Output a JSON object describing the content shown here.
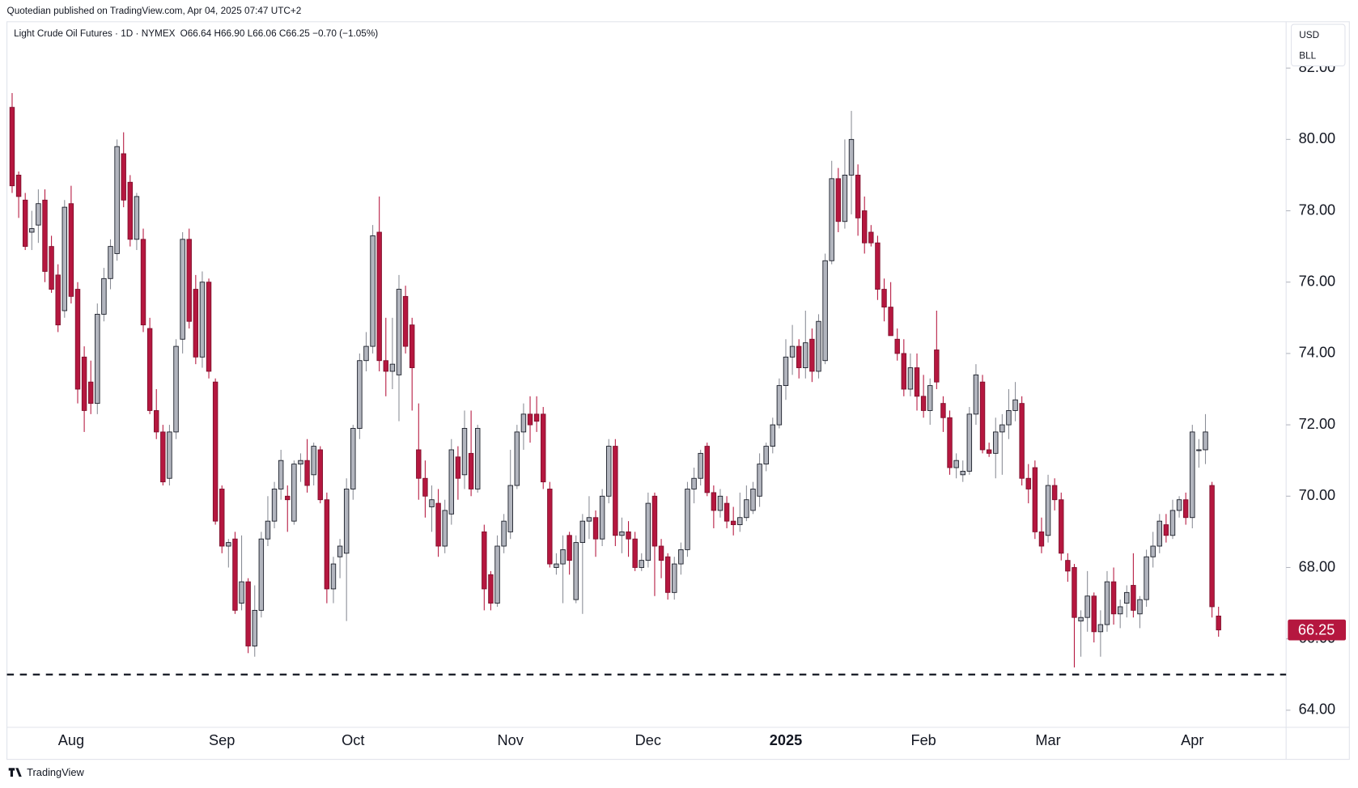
{
  "header": {
    "published": "Quotedian published on TradingView.com, Apr 04, 2025 07:47 UTC+2"
  },
  "footer": {
    "brand": "TradingView"
  },
  "chart_data": {
    "type": "candlestick",
    "title": "Light Crude Oil Futures · 1D · NYMEX",
    "subtitle": "O66.64 H66.90 L66.06 C66.25 −0.70 (−1.05%)",
    "currency": "USD",
    "unit": "BLL",
    "up_color": "#b2b5be",
    "down_color": "#b5173f",
    "hline": 65,
    "ylim": [
      63.52,
      83.3
    ],
    "yticks": [
      {
        "value": 64,
        "label": "64.00"
      },
      {
        "value": 66,
        "label": "66.00"
      },
      {
        "value": 68,
        "label": "68.00"
      },
      {
        "value": 70,
        "label": "70.00"
      },
      {
        "value": 72,
        "label": "72.00"
      },
      {
        "value": 74,
        "label": "74.00"
      },
      {
        "value": 76,
        "label": "76.00"
      },
      {
        "value": 78,
        "label": "78.00"
      },
      {
        "value": 80,
        "label": "80.00"
      },
      {
        "value": 82,
        "label": "82.00"
      }
    ],
    "categories": [
      null,
      null,
      null,
      null,
      null,
      null,
      null,
      null,
      null,
      "Aug",
      null,
      null,
      null,
      null,
      null,
      null,
      null,
      null,
      null,
      null,
      null,
      null,
      null,
      null,
      null,
      null,
      null,
      null,
      null,
      null,
      null,
      null,
      "Sep",
      null,
      null,
      null,
      null,
      null,
      null,
      null,
      null,
      null,
      null,
      null,
      null,
      null,
      null,
      null,
      null,
      null,
      null,
      null,
      "Oct",
      null,
      null,
      null,
      null,
      null,
      null,
      null,
      null,
      null,
      null,
      null,
      null,
      null,
      null,
      null,
      null,
      null,
      null,
      null,
      null,
      null,
      null,
      null,
      "Nov",
      null,
      null,
      null,
      null,
      null,
      null,
      null,
      null,
      null,
      null,
      null,
      null,
      null,
      null,
      null,
      null,
      null,
      null,
      null,
      null,
      "Dec",
      null,
      null,
      null,
      null,
      null,
      null,
      null,
      null,
      null,
      null,
      null,
      null,
      null,
      null,
      null,
      null,
      null,
      null,
      null,
      null,
      "2025",
      null,
      null,
      null,
      null,
      null,
      null,
      null,
      null,
      null,
      null,
      null,
      null,
      null,
      null,
      null,
      null,
      null,
      null,
      null,
      null,
      "Feb",
      null,
      null,
      null,
      null,
      null,
      null,
      null,
      null,
      null,
      null,
      null,
      null,
      null,
      null,
      null,
      null,
      null,
      null,
      "Mar",
      null,
      null,
      null,
      null,
      null,
      null,
      null,
      null,
      null,
      null,
      null,
      null,
      null,
      null,
      null,
      null,
      null,
      null,
      null,
      null,
      null,
      "Apr",
      null,
      null,
      null
    ],
    "ohlc": [
      [
        80.9,
        81.3,
        78.5,
        78.7
      ],
      [
        79.0,
        79.1,
        77.8,
        78.4
      ],
      [
        78.3,
        78.5,
        76.9,
        77.0
      ],
      [
        77.4,
        78.0,
        76.9,
        77.5
      ],
      [
        77.6,
        78.6,
        77.1,
        78.2
      ],
      [
        78.3,
        78.6,
        76.0,
        76.3
      ],
      [
        77.0,
        77.3,
        75.7,
        75.8
      ],
      [
        76.2,
        76.5,
        74.6,
        74.8
      ],
      [
        75.2,
        78.3,
        75.0,
        78.1
      ],
      [
        78.2,
        78.7,
        75.4,
        75.6
      ],
      [
        75.8,
        76.0,
        72.6,
        73.0
      ],
      [
        73.9,
        74.2,
        71.8,
        72.4
      ],
      [
        73.2,
        73.8,
        72.3,
        72.6
      ],
      [
        72.6,
        75.4,
        72.3,
        75.1
      ],
      [
        75.1,
        76.4,
        74.9,
        76.1
      ],
      [
        76.1,
        77.2,
        75.8,
        77.0
      ],
      [
        76.8,
        80.0,
        76.6,
        79.8
      ],
      [
        79.6,
        80.2,
        78.1,
        78.3
      ],
      [
        78.8,
        79.0,
        77.0,
        77.2
      ],
      [
        77.2,
        78.5,
        76.9,
        78.4
      ],
      [
        77.2,
        77.5,
        74.6,
        74.8
      ],
      [
        74.7,
        75.0,
        72.3,
        72.4
      ],
      [
        72.4,
        73.0,
        71.6,
        71.8
      ],
      [
        71.8,
        72.0,
        70.3,
        70.4
      ],
      [
        70.5,
        72.0,
        70.3,
        71.8
      ],
      [
        71.8,
        74.4,
        71.6,
        74.2
      ],
      [
        74.4,
        77.4,
        74.0,
        77.2
      ],
      [
        77.2,
        77.5,
        74.7,
        74.9
      ],
      [
        75.8,
        76.2,
        73.7,
        73.9
      ],
      [
        73.9,
        76.3,
        73.6,
        76.0
      ],
      [
        76.0,
        76.1,
        73.3,
        73.5
      ],
      [
        73.2,
        73.3,
        69.2,
        69.3
      ],
      [
        70.2,
        70.3,
        68.4,
        68.6
      ],
      [
        68.6,
        68.8,
        68.0,
        68.7
      ],
      [
        68.8,
        69.0,
        66.7,
        66.8
      ],
      [
        67.0,
        68.9,
        66.8,
        67.6
      ],
      [
        67.6,
        67.7,
        65.6,
        65.8
      ],
      [
        65.8,
        67.5,
        65.5,
        66.8
      ],
      [
        66.8,
        69.0,
        66.6,
        68.8
      ],
      [
        68.8,
        70.0,
        68.6,
        69.3
      ],
      [
        69.3,
        70.4,
        69.1,
        70.2
      ],
      [
        70.2,
        71.3,
        69.9,
        71.0
      ],
      [
        70.0,
        70.3,
        69.0,
        69.9
      ],
      [
        69.3,
        71.0,
        69.2,
        70.9
      ],
      [
        70.9,
        71.2,
        70.4,
        71.0
      ],
      [
        71.0,
        71.6,
        70.1,
        70.3
      ],
      [
        70.6,
        71.5,
        70.3,
        71.4
      ],
      [
        71.3,
        71.4,
        69.8,
        69.9
      ],
      [
        69.9,
        70.1,
        67.0,
        67.4
      ],
      [
        67.4,
        68.3,
        67.0,
        68.1
      ],
      [
        68.3,
        68.8,
        67.7,
        68.6
      ],
      [
        68.4,
        70.5,
        66.5,
        70.2
      ],
      [
        70.2,
        72.0,
        69.9,
        71.9
      ],
      [
        71.9,
        74.0,
        71.6,
        73.8
      ],
      [
        73.8,
        74.6,
        73.5,
        74.2
      ],
      [
        74.2,
        77.6,
        74.0,
        77.3
      ],
      [
        77.4,
        78.4,
        73.5,
        73.8
      ],
      [
        73.8,
        75.0,
        72.8,
        73.5
      ],
      [
        73.5,
        75.0,
        73.0,
        73.7
      ],
      [
        73.4,
        76.2,
        72.1,
        75.8
      ],
      [
        75.6,
        75.9,
        74.0,
        74.2
      ],
      [
        74.8,
        75.0,
        72.4,
        73.6
      ],
      [
        71.3,
        72.6,
        69.9,
        70.5
      ],
      [
        70.5,
        71.0,
        69.4,
        70.0
      ],
      [
        69.7,
        70.3,
        69.0,
        69.9
      ],
      [
        69.8,
        70.2,
        68.3,
        68.6
      ],
      [
        68.6,
        69.9,
        68.4,
        69.6
      ],
      [
        69.5,
        71.6,
        69.2,
        71.3
      ],
      [
        71.1,
        71.4,
        69.9,
        70.5
      ],
      [
        70.6,
        72.4,
        70.2,
        71.9
      ],
      [
        71.2,
        72.4,
        70.0,
        70.2
      ],
      [
        70.2,
        72.0,
        70.1,
        71.9
      ],
      [
        69.0,
        69.2,
        66.8,
        67.4
      ],
      [
        67.8,
        67.9,
        66.8,
        67.0
      ],
      [
        67.0,
        68.9,
        66.9,
        68.6
      ],
      [
        68.6,
        69.5,
        68.4,
        69.3
      ],
      [
        69.0,
        71.3,
        68.8,
        70.3
      ],
      [
        70.3,
        72.0,
        70.2,
        71.8
      ],
      [
        71.8,
        72.6,
        71.3,
        72.3
      ],
      [
        72.3,
        72.8,
        71.5,
        72.0
      ],
      [
        72.3,
        72.8,
        71.8,
        72.1
      ],
      [
        72.3,
        72.5,
        70.2,
        70.4
      ],
      [
        70.2,
        70.4,
        68.0,
        68.1
      ],
      [
        68.0,
        68.4,
        67.8,
        68.1
      ],
      [
        68.1,
        68.9,
        67.0,
        68.5
      ],
      [
        68.9,
        69.0,
        67.8,
        68.2
      ],
      [
        67.1,
        68.9,
        67.0,
        68.7
      ],
      [
        68.7,
        69.5,
        66.7,
        69.3
      ],
      [
        69.3,
        70.0,
        68.8,
        69.4
      ],
      [
        69.4,
        69.6,
        68.3,
        68.8
      ],
      [
        68.8,
        70.2,
        68.6,
        70.0
      ],
      [
        70.0,
        71.6,
        69.8,
        71.4
      ],
      [
        71.4,
        71.6,
        68.6,
        68.9
      ],
      [
        68.9,
        69.4,
        68.4,
        69.0
      ],
      [
        69.0,
        69.3,
        68.3,
        68.8
      ],
      [
        68.8,
        69.0,
        67.9,
        68.0
      ],
      [
        68.0,
        68.4,
        67.9,
        68.2
      ],
      [
        68.2,
        70.1,
        68.0,
        69.8
      ],
      [
        70.0,
        70.1,
        67.2,
        68.6
      ],
      [
        68.6,
        68.8,
        67.7,
        68.2
      ],
      [
        68.3,
        68.4,
        67.1,
        67.3
      ],
      [
        67.3,
        68.3,
        67.1,
        68.1
      ],
      [
        68.1,
        68.7,
        67.8,
        68.5
      ],
      [
        68.5,
        70.4,
        68.3,
        70.2
      ],
      [
        70.2,
        70.8,
        69.8,
        70.5
      ],
      [
        70.5,
        71.3,
        70.3,
        71.2
      ],
      [
        71.4,
        71.5,
        70.0,
        70.1
      ],
      [
        70.1,
        70.3,
        69.1,
        69.6
      ],
      [
        69.6,
        70.2,
        69.4,
        70.0
      ],
      [
        69.8,
        70.0,
        69.1,
        69.3
      ],
      [
        69.3,
        69.7,
        68.9,
        69.2
      ],
      [
        69.2,
        70.1,
        69.0,
        69.4
      ],
      [
        69.4,
        70.3,
        69.3,
        69.9
      ],
      [
        69.6,
        70.4,
        69.5,
        70.2
      ],
      [
        70.0,
        71.2,
        69.7,
        70.9
      ],
      [
        70.9,
        71.5,
        70.7,
        71.4
      ],
      [
        71.4,
        72.2,
        71.2,
        72.0
      ],
      [
        72.0,
        73.3,
        71.9,
        73.1
      ],
      [
        73.1,
        74.4,
        72.7,
        73.9
      ],
      [
        73.9,
        74.8,
        73.4,
        74.2
      ],
      [
        74.2,
        74.4,
        73.3,
        73.6
      ],
      [
        73.6,
        75.2,
        73.3,
        74.3
      ],
      [
        74.4,
        74.7,
        73.2,
        73.5
      ],
      [
        73.5,
        75.1,
        73.3,
        74.9
      ],
      [
        73.8,
        76.8,
        73.7,
        76.6
      ],
      [
        76.6,
        79.4,
        76.5,
        78.9
      ],
      [
        78.9,
        79.2,
        77.4,
        77.7
      ],
      [
        77.7,
        80.0,
        77.5,
        79.0
      ],
      [
        79.0,
        80.8,
        77.9,
        80.0
      ],
      [
        79.0,
        79.3,
        77.3,
        77.8
      ],
      [
        78.0,
        78.4,
        76.8,
        77.1
      ],
      [
        77.4,
        77.6,
        77.0,
        77.1
      ],
      [
        77.1,
        77.3,
        75.5,
        75.8
      ],
      [
        75.8,
        76.1,
        74.9,
        75.3
      ],
      [
        75.3,
        76.0,
        74.5,
        74.5
      ],
      [
        74.4,
        74.7,
        73.8,
        74.0
      ],
      [
        74.0,
        74.4,
        72.8,
        73.0
      ],
      [
        73.0,
        74.0,
        72.8,
        73.6
      ],
      [
        73.6,
        74.0,
        72.4,
        72.8
      ],
      [
        72.8,
        73.4,
        72.2,
        72.4
      ],
      [
        72.4,
        73.3,
        72.0,
        73.1
      ],
      [
        74.1,
        75.2,
        73.0,
        73.2
      ],
      [
        72.6,
        72.8,
        71.8,
        72.2
      ],
      [
        72.2,
        72.4,
        70.6,
        70.8
      ],
      [
        70.8,
        71.2,
        70.5,
        71.0
      ],
      [
        70.6,
        71.0,
        70.4,
        70.7
      ],
      [
        70.7,
        72.5,
        70.6,
        72.3
      ],
      [
        72.3,
        73.7,
        72.0,
        73.4
      ],
      [
        73.2,
        73.4,
        71.2,
        71.3
      ],
      [
        71.3,
        71.5,
        71.1,
        71.2
      ],
      [
        71.2,
        72.2,
        70.5,
        71.8
      ],
      [
        71.8,
        72.3,
        70.6,
        72.0
      ],
      [
        72.0,
        73.0,
        71.6,
        72.4
      ],
      [
        72.4,
        73.2,
        72.1,
        72.7
      ],
      [
        72.6,
        72.8,
        70.3,
        70.5
      ],
      [
        70.5,
        70.9,
        69.8,
        70.2
      ],
      [
        70.8,
        71.0,
        68.8,
        69.0
      ],
      [
        69.0,
        69.4,
        68.4,
        68.6
      ],
      [
        68.9,
        70.6,
        68.7,
        70.3
      ],
      [
        70.3,
        70.5,
        69.6,
        69.9
      ],
      [
        69.9,
        70.1,
        68.2,
        68.4
      ],
      [
        68.2,
        68.4,
        67.6,
        67.9
      ],
      [
        68.0,
        68.1,
        65.2,
        66.6
      ],
      [
        66.5,
        66.8,
        65.5,
        66.6
      ],
      [
        66.6,
        67.9,
        66.2,
        67.2
      ],
      [
        67.2,
        67.3,
        65.9,
        66.2
      ],
      [
        66.2,
        66.8,
        65.5,
        66.4
      ],
      [
        66.4,
        67.9,
        66.2,
        67.6
      ],
      [
        67.6,
        68.0,
        66.4,
        66.7
      ],
      [
        66.7,
        67.1,
        66.3,
        66.9
      ],
      [
        67.0,
        67.5,
        66.6,
        67.3
      ],
      [
        67.5,
        68.4,
        66.6,
        66.8
      ],
      [
        66.7,
        67.2,
        66.3,
        67.1
      ],
      [
        67.1,
        68.5,
        66.9,
        68.3
      ],
      [
        68.3,
        69.0,
        68.0,
        68.6
      ],
      [
        68.6,
        69.5,
        68.4,
        69.3
      ],
      [
        69.2,
        69.5,
        68.7,
        68.9
      ],
      [
        68.9,
        69.9,
        68.8,
        69.6
      ],
      [
        69.6,
        70.0,
        69.4,
        69.9
      ],
      [
        69.9,
        70.1,
        69.2,
        69.4
      ],
      [
        69.4,
        72.0,
        69.1,
        71.8
      ],
      [
        71.3,
        71.6,
        70.8,
        71.3
      ],
      [
        71.3,
        72.3,
        70.9,
        71.8
      ],
      [
        70.3,
        70.4,
        66.6,
        66.9
      ],
      [
        66.64,
        66.9,
        66.06,
        66.25
      ]
    ]
  }
}
